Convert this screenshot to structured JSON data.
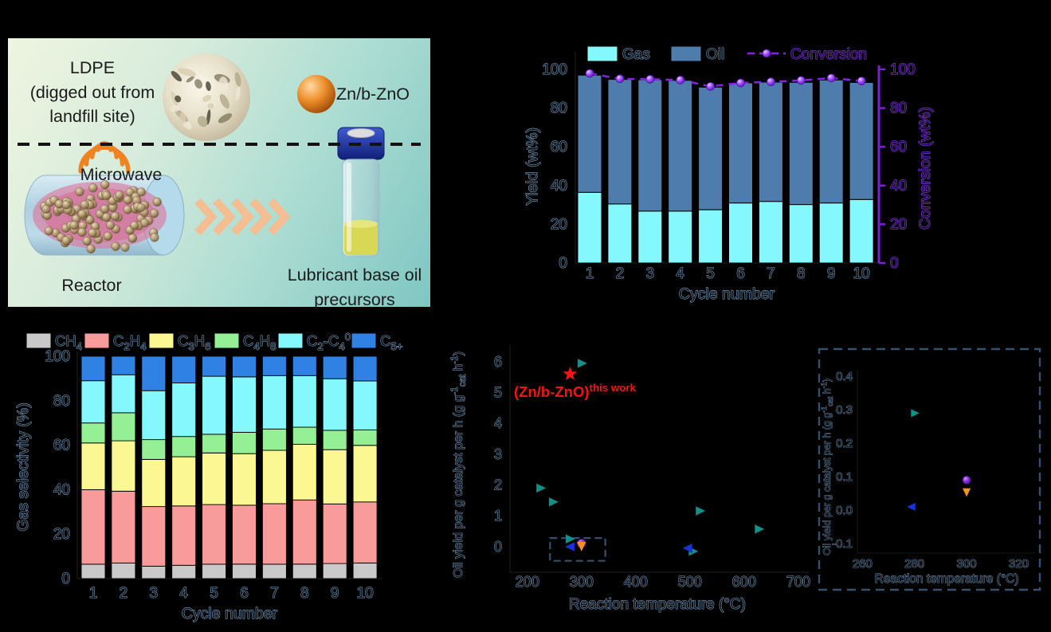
{
  "panel_a": {
    "ldpe_lines": [
      "LDPE",
      "(digged out from",
      "landfill site)"
    ],
    "catalyst_label": "Zn/b-ZnO",
    "microwave_label": "Microwave",
    "reactor_label": "Reactor",
    "product_lines": [
      "Lubricant base oil",
      "precursors"
    ]
  },
  "colors": {
    "background": "#000000",
    "gas_cyan": "#84f8fc",
    "oil_blue": "#4d7cad",
    "conversion_purple": "#8a23e8",
    "purple_axis": "#7c1fd9",
    "ch4_gray": "#c9c9c9",
    "c2h4_salmon": "#f99b9b",
    "c3h6_yellow": "#fbf893",
    "c4h8_green": "#95ef95",
    "c2c4_cyan": "#84f8fc",
    "c5_blue": "#2f82e4",
    "teal_marker": "#12908a",
    "blue_marker": "#1433d8",
    "orange_marker": "#f5921e",
    "purple_marker": "#8a2be2",
    "red_accent": "#f31510",
    "zoom_box_navy": "#33516e"
  },
  "chart_data": [
    {
      "id": "yield-conversion",
      "type": "bar",
      "xlabel": "Cycle number",
      "ylabel_left": "Yield (wt%)",
      "ylabel_right": "Conversion (wt%)",
      "categories": [
        "1",
        "2",
        "3",
        "4",
        "5",
        "6",
        "7",
        "8",
        "9",
        "10"
      ],
      "yticks": [
        0,
        20,
        40,
        60,
        80,
        100
      ],
      "ylim": [
        0,
        108
      ],
      "legend_position": "top",
      "series": [
        {
          "name": "Gas",
          "type": "bar",
          "color": "#84f8fc",
          "values": [
            36.5,
            30.5,
            26.8,
            26.8,
            27.5,
            31,
            31.8,
            30.2,
            31,
            32.8
          ]
        },
        {
          "name": "Oil",
          "type": "bar",
          "color": "#4d7cad",
          "values": [
            60.5,
            64.3,
            67.8,
            67.5,
            63.3,
            62,
            61.6,
            63.1,
            63.5,
            60.4
          ]
        },
        {
          "name": "Conversion",
          "type": "line",
          "color": "#8a23e8",
          "values": [
            97.9,
            95.1,
            94.9,
            94.5,
            91.2,
            93,
            93.6,
            94.3,
            95.5,
            94
          ]
        }
      ]
    },
    {
      "id": "gas-selectivity",
      "type": "stacked-bar",
      "xlabel": "Cycle number",
      "ylabel": "Gas selectivity (%)",
      "categories": [
        "1",
        "2",
        "3",
        "4",
        "5",
        "6",
        "7",
        "8",
        "9",
        "10"
      ],
      "yticks": [
        0,
        20,
        40,
        60,
        80,
        100
      ],
      "ylim": [
        0,
        100
      ],
      "legend_position": "top",
      "series": [
        {
          "name": "CH_{4}",
          "color": "#c9c9c9",
          "values": [
            6.5,
            7,
            5.6,
            6,
            6.5,
            6.5,
            6.5,
            6.5,
            6.8,
            7
          ]
        },
        {
          "name": "C_{2}H_{4}",
          "color": "#f99b9b",
          "values": [
            33.5,
            32.3,
            26.8,
            26.7,
            26.8,
            26.5,
            27.2,
            28.9,
            26.8,
            27.5
          ]
        },
        {
          "name": "C_{3}H_{6}",
          "color": "#fbf893",
          "values": [
            21,
            22.7,
            21.2,
            22.1,
            23.2,
            23.2,
            24,
            25,
            24.4,
            25.4
          ]
        },
        {
          "name": "C_{4}H_{8}",
          "color": "#95ef95",
          "values": [
            9,
            12.6,
            8.9,
            9.1,
            8.4,
            9.6,
            9.6,
            7.7,
            8.7,
            7
          ]
        },
        {
          "name": "C_{2}-C_{4}^{0}",
          "color": "#84f8fc",
          "values": [
            19,
            17.1,
            22,
            24.1,
            26.1,
            24.9,
            24,
            23.2,
            23.2,
            22
          ]
        },
        {
          "name": "C_{5+}",
          "color": "#2f82e4",
          "values": [
            11,
            8.3,
            15.5,
            12,
            9,
            9.3,
            8.7,
            8.7,
            10.1,
            11.1
          ]
        }
      ]
    },
    {
      "id": "oil-yield-comparison",
      "type": "scatter",
      "xlabel": "Reaction temperature (°C)",
      "ylabel": "Oil yield per g catalyst per h (g g^{-1}_{cat} h^{-1})",
      "xticks": [
        200,
        300,
        400,
        500,
        600,
        700
      ],
      "yticks": [
        0,
        1,
        2,
        3,
        4,
        5,
        6
      ],
      "xlim": [
        168,
        712
      ],
      "ylim": [
        -0.83,
        6.54
      ],
      "series": [
        {
          "name": "literature-teal",
          "marker": "triangle-right",
          "color": "#12908a",
          "points": [
            [
              300,
              5.95
            ],
            [
              224,
              1.9
            ],
            [
              247,
              1.45
            ],
            [
              278,
              0.25
            ],
            [
              518,
              1.16
            ],
            [
              627,
              0.57
            ],
            [
              505,
              -0.15
            ]
          ]
        },
        {
          "name": "this-work",
          "marker": "star",
          "color": "#f31510",
          "points": [
            [
              279,
              5.6
            ]
          ]
        },
        {
          "name": "literature-blue",
          "marker": "triangle-left",
          "color": "#1433d8",
          "points": [
            [
              280,
              0.0
            ],
            [
              497,
              -0.05
            ]
          ]
        },
        {
          "name": "literature-purple",
          "marker": "circle",
          "color": "#8a2be2",
          "points": [
            [
              300,
              0.1
            ]
          ]
        },
        {
          "name": "literature-orange",
          "marker": "triangle-down",
          "color": "#f5921e",
          "points": [
            [
              300,
              0.03
            ]
          ]
        }
      ],
      "annotation": {
        "text": "(Zn/b-ZnO)^{this work}",
        "color": "#f31510"
      },
      "zoom_box": {
        "x": [
          242,
          344
        ],
        "y": [
          -0.46,
          0.28
        ]
      }
    },
    {
      "id": "oil-yield-inset",
      "type": "scatter",
      "xlabel": "Reaction temperature (°C)",
      "ylabel": "Oil yield per g catalyst per h (g g^{-1}_{cat} h^{-1})",
      "xticks": [
        260,
        280,
        300,
        320
      ],
      "yticks": [
        0.4,
        0.3,
        0.2,
        0.1,
        0.0,
        -0.1
      ],
      "xlim": [
        258.1,
        328.1
      ],
      "ylim": [
        -0.119,
        0.41
      ],
      "series": [
        {
          "name": "literature-teal",
          "marker": "triangle-right",
          "color": "#12908a",
          "points": [
            [
              280,
              0.29
            ]
          ]
        },
        {
          "name": "literature-purple",
          "marker": "circle",
          "color": "#8a2be2",
          "points": [
            [
              300,
              0.09
            ]
          ]
        },
        {
          "name": "literature-orange",
          "marker": "triangle-down",
          "color": "#f5921e",
          "points": [
            [
              300,
              0.055
            ]
          ]
        },
        {
          "name": "literature-blue",
          "marker": "triangle-left",
          "color": "#1433d8",
          "points": [
            [
              279,
              0.01
            ]
          ]
        }
      ]
    }
  ]
}
